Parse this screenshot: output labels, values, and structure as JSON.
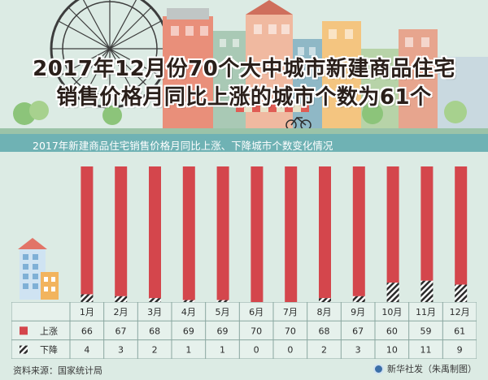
{
  "title_line1": "2017年12月份70个大中城市新建商品住宅",
  "title_line2": "销售价格月同比上涨的城市个数为61个",
  "chart_data": {
    "type": "bar",
    "title": "2017年新建商品住宅销售价格月同比上涨、下降城市个数变化情况",
    "categories": [
      "1月",
      "2月",
      "3月",
      "4月",
      "5月",
      "6月",
      "7月",
      "8月",
      "9月",
      "10月",
      "11月",
      "12月"
    ],
    "series": [
      {
        "name": "上涨",
        "values": [
          66,
          67,
          68,
          69,
          69,
          70,
          70,
          68,
          67,
          60,
          59,
          61
        ],
        "color": "#d4464c"
      },
      {
        "name": "下降",
        "values": [
          4,
          3,
          2,
          1,
          1,
          0,
          0,
          2,
          3,
          10,
          11,
          9
        ],
        "color": "#2b2b2b"
      }
    ],
    "stacked": true,
    "ylim": [
      0,
      70
    ],
    "legend": "table-bottom"
  },
  "footer": {
    "source": "资料来源：国家统计局",
    "credit": "新华社发（朱禹制图）"
  }
}
